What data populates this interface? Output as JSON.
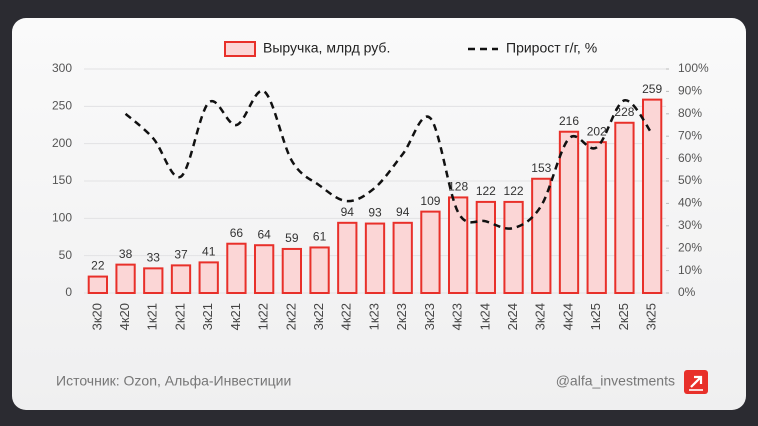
{
  "chart_data": {
    "type": "bar",
    "categories": [
      "3к20",
      "4к20",
      "1к21",
      "2к21",
      "3к21",
      "4к21",
      "1к22",
      "2к22",
      "3к22",
      "4к22",
      "1к23",
      "2к23",
      "3к23",
      "4к23",
      "1к24",
      "2к24",
      "3к24",
      "4к24",
      "1к25",
      "2к25",
      "3к25"
    ],
    "series": [
      {
        "name": "Выручка, млрд руб.",
        "type": "bar",
        "color": "#e8302a",
        "fill": "#fbd6d6",
        "values": [
          22,
          38,
          33,
          37,
          41,
          66,
          64,
          59,
          61,
          94,
          93,
          94,
          109,
          128,
          122,
          122,
          153,
          216,
          202,
          228,
          259
        ]
      },
      {
        "name": "Прирост г/г, %",
        "type": "line",
        "axis": "y2",
        "color": "#111111",
        "values": [
          null,
          80,
          69,
          52,
          85,
          75,
          90,
          59,
          48,
          41,
          47,
          62,
          78,
          36,
          32,
          29,
          39,
          69,
          65,
          86,
          71
        ]
      }
    ],
    "ylim": [
      0,
      300
    ],
    "yticks": [
      0,
      50,
      100,
      150,
      200,
      250,
      300
    ],
    "y2lim": [
      0,
      100
    ],
    "y2ticks": [
      {
        "value": 0,
        "label": "0%"
      },
      {
        "value": 10,
        "label": "10%"
      },
      {
        "value": 20,
        "label": "20%"
      },
      {
        "value": 30,
        "label": "30%"
      },
      {
        "value": 40,
        "label": "40%"
      },
      {
        "value": 50,
        "label": "50%"
      },
      {
        "value": 60,
        "label": "60%"
      },
      {
        "value": 70,
        "label": "70%"
      },
      {
        "value": 80,
        "label": "80%"
      },
      {
        "value": 90,
        "label": "90%"
      },
      {
        "value": 100,
        "label": "100%"
      }
    ],
    "grid": true,
    "legend": "top",
    "source": "Источник: Ozon, Альфа-Инвестиции",
    "handle": "@alfa_investments"
  }
}
